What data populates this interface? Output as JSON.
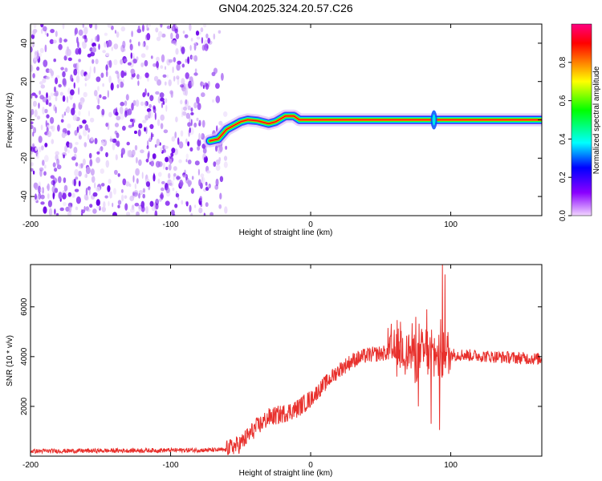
{
  "title": "GN04.2025.324.20.57.C26",
  "colors": {
    "snr_line": "#e8302c",
    "background": "#ffffff",
    "axis": "#000000",
    "noise_purple": "#7b1fe6",
    "noise_light": "#d8b8f5"
  },
  "chart_data": [
    {
      "type": "heatmap",
      "name": "spectrogram",
      "xlabel": "Height of straight line (km)",
      "ylabel": "Frequency (Hz)",
      "xlim": [
        -200,
        165
      ],
      "ylim": [
        -50,
        50
      ],
      "xticks": [
        -200,
        -100,
        0,
        100
      ],
      "yticks": [
        -40,
        -20,
        0,
        20,
        40
      ],
      "colorbar": {
        "label": "Normalized spectral amplitude",
        "range": [
          0,
          1
        ],
        "ticks": [
          "0.0",
          "0.2",
          "0.4",
          "0.6",
          "0.8"
        ],
        "colormap": [
          "#f2d6ff",
          "#8a00ff",
          "#0000ff",
          "#00ffff",
          "#00ff00",
          "#ffff00",
          "#ff8000",
          "#ff0000",
          "#ff0080"
        ]
      },
      "noise_region_x": [
        -200,
        -60
      ],
      "ridge": [
        {
          "x": -72,
          "y": -11
        },
        {
          "x": -66,
          "y": -10
        },
        {
          "x": -60,
          "y": -5
        },
        {
          "x": -55,
          "y": -3
        },
        {
          "x": -50,
          "y": -1
        },
        {
          "x": -45,
          "y": 0
        },
        {
          "x": -38,
          "y": -0.5
        },
        {
          "x": -30,
          "y": -2
        },
        {
          "x": -25,
          "y": -1
        },
        {
          "x": -18,
          "y": 2
        },
        {
          "x": -12,
          "y": 2
        },
        {
          "x": -8,
          "y": 0
        },
        {
          "x": 0,
          "y": 0
        },
        {
          "x": 90,
          "y": 0
        },
        {
          "x": 165,
          "y": 0
        }
      ]
    },
    {
      "type": "line",
      "name": "snr",
      "xlabel": "Height of straight line (km)",
      "ylabel": "SNR (10 * v/v)",
      "xlim": [
        -200,
        165
      ],
      "ylim": [
        0,
        7700
      ],
      "xticks": [
        -200,
        -100,
        0,
        100
      ],
      "yticks": [
        2000,
        4000,
        6000
      ],
      "trend": [
        {
          "x": -200,
          "y": 200
        },
        {
          "x": -60,
          "y": 250
        },
        {
          "x": -50,
          "y": 500
        },
        {
          "x": -40,
          "y": 1100
        },
        {
          "x": -30,
          "y": 1550
        },
        {
          "x": -20,
          "y": 1700
        },
        {
          "x": -10,
          "y": 1900
        },
        {
          "x": 0,
          "y": 2300
        },
        {
          "x": 10,
          "y": 2900
        },
        {
          "x": 20,
          "y": 3450
        },
        {
          "x": 30,
          "y": 3850
        },
        {
          "x": 40,
          "y": 4050
        },
        {
          "x": 60,
          "y": 4200
        },
        {
          "x": 80,
          "y": 4150
        },
        {
          "x": 100,
          "y": 4100
        },
        {
          "x": 130,
          "y": 4000
        },
        {
          "x": 165,
          "y": 3900
        }
      ],
      "peaks": [
        {
          "x": 94,
          "y": 7700
        },
        {
          "x": 96,
          "y": 7300
        },
        {
          "x": 83,
          "y": 5900
        },
        {
          "x": 75,
          "y": 5600
        },
        {
          "x": 64,
          "y": 5400
        },
        {
          "x": 92,
          "y": 1050
        },
        {
          "x": 86,
          "y": 1300
        },
        {
          "x": 77,
          "y": 2000
        }
      ]
    }
  ]
}
